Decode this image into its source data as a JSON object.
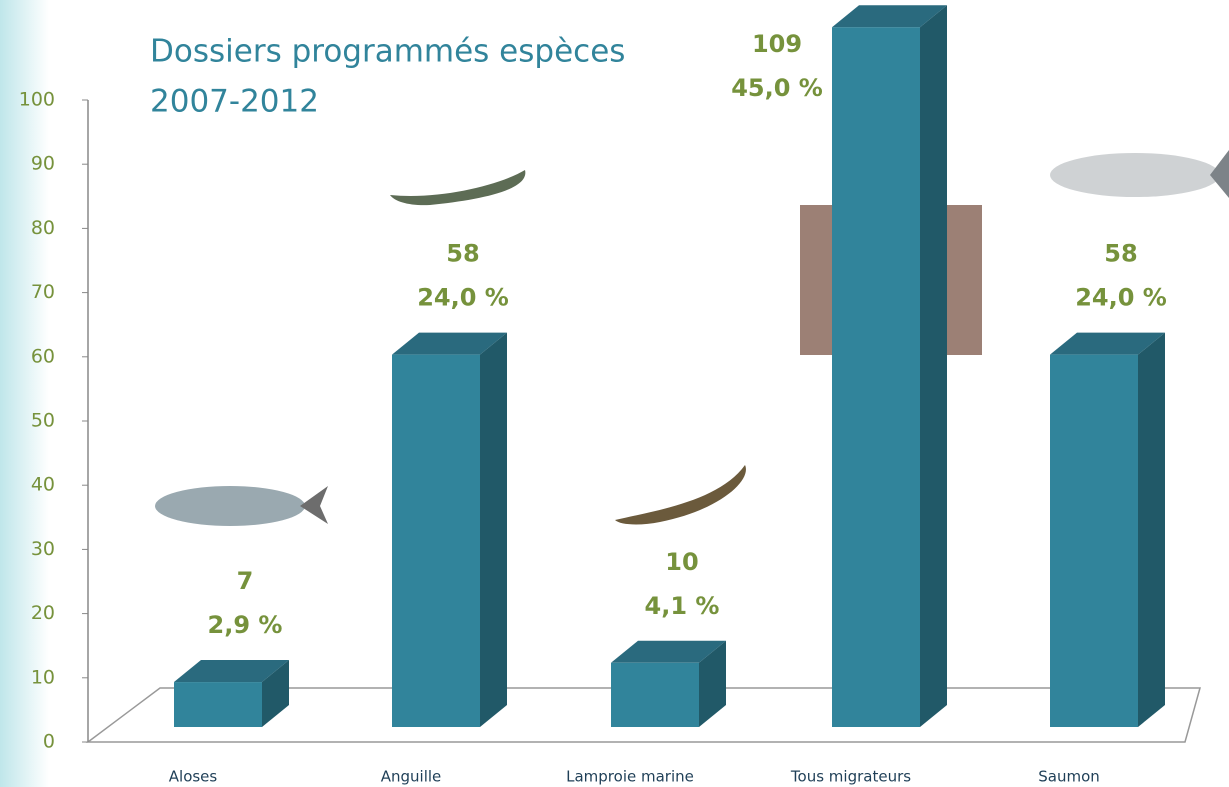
{
  "chart_data": {
    "type": "bar3d",
    "title": [
      "Dossiers programmés espèces",
      "2007-2012"
    ],
    "categories": [
      "Aloses",
      "Anguille",
      "Lamproie marine",
      "Tous migrateurs",
      "Saumon"
    ],
    "values": [
      7,
      58,
      10,
      109,
      58
    ],
    "percent_labels": [
      "2,9 %",
      "24,0 %",
      "4,1 %",
      "45,0 %",
      "24,0 %"
    ],
    "color": "#31849b",
    "ylim": [
      0,
      100
    ],
    "yticks": [
      0,
      10,
      20,
      30,
      40,
      50,
      60,
      70,
      80,
      90,
      100
    ]
  }
}
